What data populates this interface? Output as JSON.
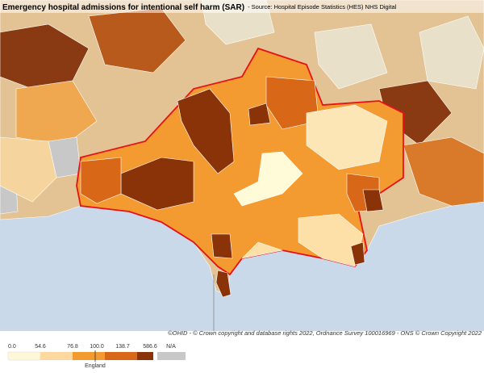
{
  "header": {
    "title": "Emergency hospital admissions for intentional self harm (SAR)",
    "source": "- Source: Hospital Episode Statistics (HES) NHS Digital"
  },
  "attribution": "©OHID - © Crown copyright and database rights 2022, Ordnance Survey 100016969 - ONS © Crown Copyright 2022",
  "legend": {
    "breaks": [
      "0.0",
      "54.6",
      "76.8",
      "100.0",
      "138.7",
      "586.6"
    ],
    "na": "N/A",
    "comparator": "England"
  }
}
